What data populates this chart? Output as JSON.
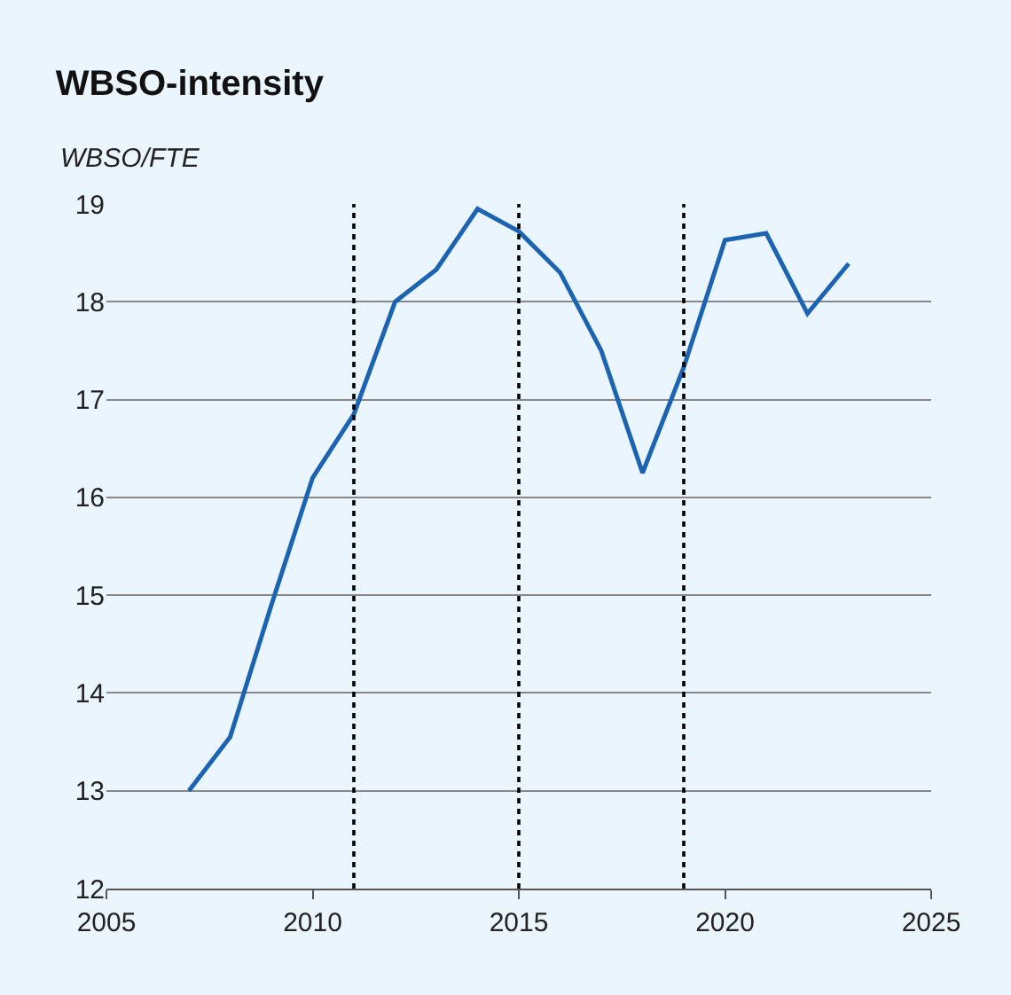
{
  "chart_data": {
    "type": "line",
    "title": "WBSO-intensity",
    "ylabel": "WBSO/FTE",
    "x": [
      2007,
      2008,
      2009,
      2010,
      2011,
      2012,
      2013,
      2014,
      2015,
      2016,
      2017,
      2018,
      2019,
      2020,
      2021,
      2022,
      2023
    ],
    "series": [
      {
        "color": "#1c64b2",
        "values": [
          13.0,
          13.55,
          14.9,
          16.2,
          16.85,
          18.0,
          18.33,
          18.95,
          18.72,
          18.3,
          17.5,
          16.25,
          17.33,
          18.63,
          18.7,
          17.88,
          18.39
        ]
      }
    ],
    "xlim": [
      2005,
      2025
    ],
    "xticks": [
      2005,
      2010,
      2015,
      2020,
      2025
    ],
    "ylim": [
      12,
      19
    ],
    "yticks": [
      12,
      13,
      14,
      15,
      16,
      17,
      18,
      19
    ],
    "grid": "y",
    "marker": "none",
    "line_style": "solid",
    "ref_lines": [
      {
        "axis": "x",
        "value": 2011,
        "color": "#000000",
        "line_style": "dotted"
      },
      {
        "axis": "x",
        "value": 2015,
        "color": "#000000",
        "line_style": "dotted"
      },
      {
        "axis": "x",
        "value": 2019,
        "color": "#000000",
        "line_style": "dotted"
      }
    ]
  }
}
